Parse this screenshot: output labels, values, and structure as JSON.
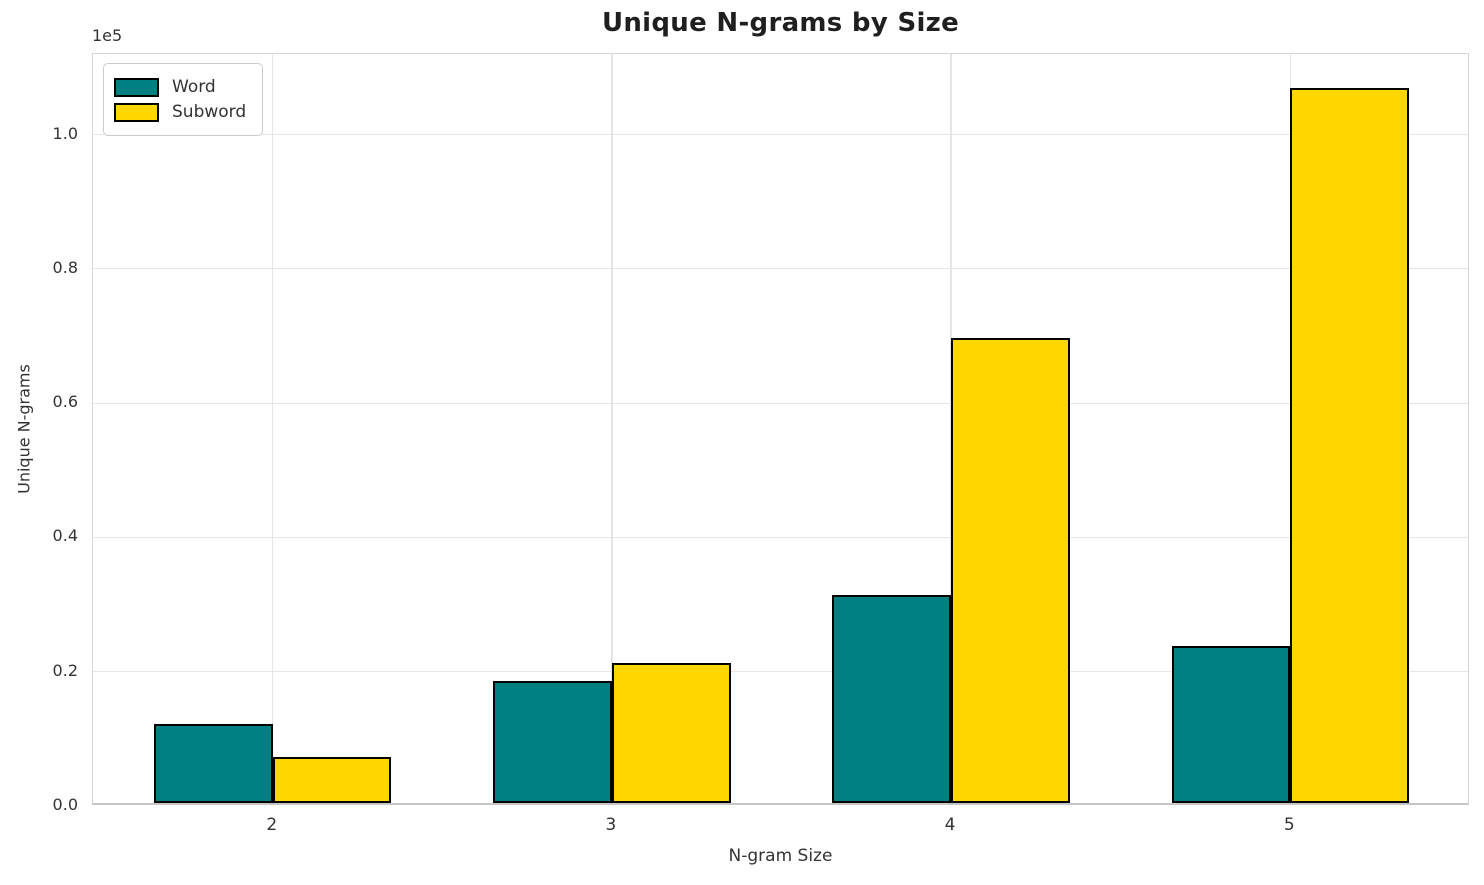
{
  "chart_data": {
    "type": "bar",
    "title": "Unique N-grams by Size",
    "xlabel": "N-gram Size",
    "ylabel": "Unique N-grams",
    "y_offset_label": "1e5",
    "categories": [
      "2",
      "3",
      "4",
      "5"
    ],
    "x": [
      2,
      3,
      4,
      5
    ],
    "series": [
      {
        "name": "Word",
        "color": "#008080",
        "values": [
          11800,
          18100,
          31000,
          23400
        ]
      },
      {
        "name": "Subword",
        "color": "#FFD700",
        "values": [
          6900,
          20900,
          69200,
          106500
        ]
      }
    ],
    "bar_width": 0.35,
    "bar_edge_color": "#000000",
    "xlim": [
      1.47,
      5.53
    ],
    "ylim": [
      0,
      112000
    ],
    "yticks": [
      {
        "label": "0.0",
        "value": 0
      },
      {
        "label": "0.2",
        "value": 20000
      },
      {
        "label": "0.4",
        "value": 40000
      },
      {
        "label": "0.6",
        "value": 60000
      },
      {
        "label": "0.8",
        "value": 80000
      },
      {
        "label": "1.0",
        "value": 100000
      }
    ],
    "grid": true,
    "legend_position": "upper left"
  }
}
